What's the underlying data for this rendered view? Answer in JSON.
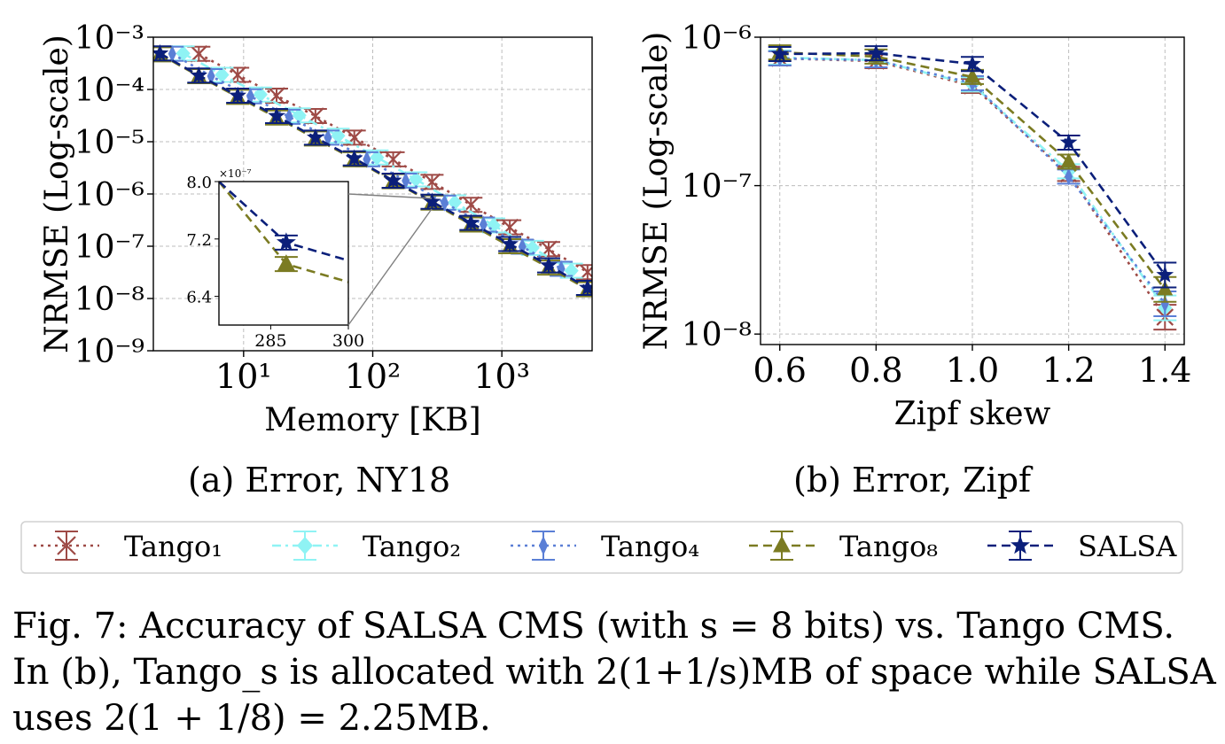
{
  "figure": {
    "subcaption_a": "(a) Error, NY18",
    "subcaption_b": "(b) Error, Zipf",
    "caption": [
      "Fig. 7: Accuracy of SALSA CMS (with s = 8 bits) vs. Tango CMS.",
      "In (b), Tango_s is allocated with 2(1+1/s)MB of space while SALSA",
      "uses 2(1 + 1/8) = 2.25MB."
    ]
  },
  "legend": {
    "entries": [
      {
        "label": "Tango₁",
        "color": "#9e4a46",
        "marker": "x",
        "dash": "dotted"
      },
      {
        "label": "Tango₂",
        "color": "#8ff3f4",
        "marker": "diamond",
        "dash": "dashdot"
      },
      {
        "label": "Tango₄",
        "color": "#5b7fd6",
        "marker": "thin-diamond",
        "dash": "dotted"
      },
      {
        "label": "Tango₈",
        "color": "#7b7b22",
        "marker": "triangle",
        "dash": "dashed"
      },
      {
        "label": "SALSA",
        "color": "#0b1f7a",
        "marker": "star",
        "dash": "dashed"
      }
    ]
  },
  "chart_data": [
    {
      "type": "line",
      "xlabel": "Memory [KB]",
      "ylabel": "NRMSE (Log-scale)",
      "xscale": "log",
      "yscale": "log",
      "xlim": [
        2,
        5000
      ],
      "ylim": [
        1e-09,
        0.001
      ],
      "xticks": [
        {
          "v": 10,
          "label": "10¹"
        },
        {
          "v": 100,
          "label": "10²"
        },
        {
          "v": 1000,
          "label": "10³"
        }
      ],
      "yticks": [
        {
          "v": 0.001,
          "label": "10⁻³"
        },
        {
          "v": 0.0001,
          "label": "10⁻⁴"
        },
        {
          "v": 1e-05,
          "label": "10⁻⁵"
        },
        {
          "v": 1e-06,
          "label": "10⁻⁶"
        },
        {
          "v": 1e-07,
          "label": "10⁻⁷"
        },
        {
          "v": 1e-08,
          "label": "10⁻⁸"
        },
        {
          "v": 1e-09,
          "label": "10⁻⁹"
        }
      ],
      "grid": true,
      "series": [
        {
          "name": "Tango₁",
          "x": [
            4.5,
            9,
            18,
            36,
            72,
            144,
            288,
            576,
            1152,
            2304,
            4608
          ],
          "y": [
            0.00048,
            0.00019,
            7.6e-05,
            3.1e-05,
            1.2e-05,
            4.6e-06,
            1.7e-06,
            6.2e-07,
            2.3e-07,
            8.8e-08,
            3.2e-08
          ]
        },
        {
          "name": "Tango₂",
          "x": [
            3.4,
            6.8,
            13.5,
            27,
            54,
            108,
            216,
            432,
            864,
            1728,
            3456
          ],
          "y": [
            0.00049,
            0.00019,
            8e-05,
            3.2e-05,
            1.3e-05,
            5e-06,
            1.9e-06,
            6.9e-07,
            2.5e-07,
            9.3e-08,
            3.4e-08
          ]
        },
        {
          "name": "Tango₄",
          "x": [
            2.8,
            5.6,
            11.3,
            22.5,
            45,
            90,
            180,
            360,
            720,
            1440,
            2880
          ],
          "y": [
            0.00048,
            0.00018,
            7.4e-05,
            3e-05,
            1.2e-05,
            4.6e-06,
            1.8e-06,
            6.8e-07,
            2.6e-07,
            9.8e-08,
            3.7e-08
          ]
        },
        {
          "name": "Tango₈",
          "x": [
            2.25,
            4.5,
            9,
            18,
            36,
            72,
            144,
            288,
            576,
            1152,
            2304,
            4608
          ],
          "y": [
            0.00047,
            0.00018,
            7.2e-05,
            2.9e-05,
            1.15e-05,
            4.6e-06,
            1.75e-06,
            6.85e-07,
            2.6e-07,
            1e-07,
            3.9e-08,
            1.5e-08
          ]
        },
        {
          "name": "SALSA",
          "x": [
            2.25,
            4.5,
            9,
            18,
            36,
            72,
            144,
            288,
            576,
            1152,
            2304,
            4608
          ],
          "y": [
            0.00049,
            0.000185,
            7.6e-05,
            3.1e-05,
            1.2e-05,
            4.8e-06,
            1.8e-06,
            7.1e-07,
            2.8e-07,
            1.1e-07,
            4.3e-08,
            1.6e-08
          ]
        }
      ],
      "inset": {
        "xlim": [
          275,
          300
        ],
        "ylim": [
          6e-07,
          8e-07
        ],
        "xticks": [
          {
            "v": 285,
            "label": "285"
          },
          {
            "v": 300,
            "label": "300"
          }
        ],
        "yticks": [
          {
            "v": 8e-07,
            "label": "8.0"
          },
          {
            "v": 7.2e-07,
            "label": "7.2"
          },
          {
            "v": 6.4e-07,
            "label": "6.4"
          }
        ],
        "multiplier_label": "×10⁻⁷",
        "series": [
          {
            "name": "Tango₈",
            "x": [
              275,
              288,
              300
            ],
            "y": [
              8e-07,
              6.85e-07,
              6.6e-07
            ]
          },
          {
            "name": "SALSA",
            "x": [
              275,
              288,
              300
            ],
            "y": [
              8e-07,
              7.15e-07,
              6.9e-07
            ]
          }
        ]
      }
    },
    {
      "type": "line",
      "xlabel": "Zipf skew",
      "ylabel": "NRMSE (Log-scale)",
      "yscale": "log",
      "xlim": [
        0.56,
        1.44
      ],
      "ylim": [
        8.5e-09,
        1e-06
      ],
      "xticks": [
        {
          "v": 0.6,
          "label": "0.6"
        },
        {
          "v": 0.8,
          "label": "0.8"
        },
        {
          "v": 1.0,
          "label": "1.0"
        },
        {
          "v": 1.2,
          "label": "1.2"
        },
        {
          "v": 1.4,
          "label": "1.4"
        }
      ],
      "yticks": [
        {
          "v": 1e-06,
          "label": "10⁻⁶"
        },
        {
          "v": 1e-07,
          "label": "10⁻⁷"
        },
        {
          "v": 1e-08,
          "label": "10⁻⁸"
        }
      ],
      "grid": true,
      "series": [
        {
          "name": "Tango₁",
          "x": [
            0.6,
            0.8,
            1.0,
            1.2,
            1.4
          ],
          "y": [
            7.2e-07,
            6.9e-07,
            4.7e-07,
            1.2e-07,
            1.3e-08
          ]
        },
        {
          "name": "Tango₂",
          "x": [
            0.6,
            0.8,
            1.0,
            1.2,
            1.4
          ],
          "y": [
            7.3e-07,
            7e-07,
            4.8e-07,
            1.25e-07,
            1.5e-08
          ]
        },
        {
          "name": "Tango₄",
          "x": [
            0.6,
            0.8,
            1.0,
            1.2,
            1.4
          ],
          "y": [
            7.2e-07,
            7e-07,
            4.9e-07,
            1.15e-07,
            1.6e-08
          ]
        },
        {
          "name": "Tango₈",
          "x": [
            0.6,
            0.8,
            1.0,
            1.2,
            1.4
          ],
          "y": [
            7.9e-07,
            7.4e-07,
            5.4e-07,
            1.45e-07,
            2e-08
          ]
        },
        {
          "name": "SALSA",
          "x": [
            0.6,
            0.8,
            1.0,
            1.2,
            1.4
          ],
          "y": [
            7.7e-07,
            7.8e-07,
            6.6e-07,
            1.95e-07,
            2.5e-08
          ]
        }
      ]
    }
  ]
}
